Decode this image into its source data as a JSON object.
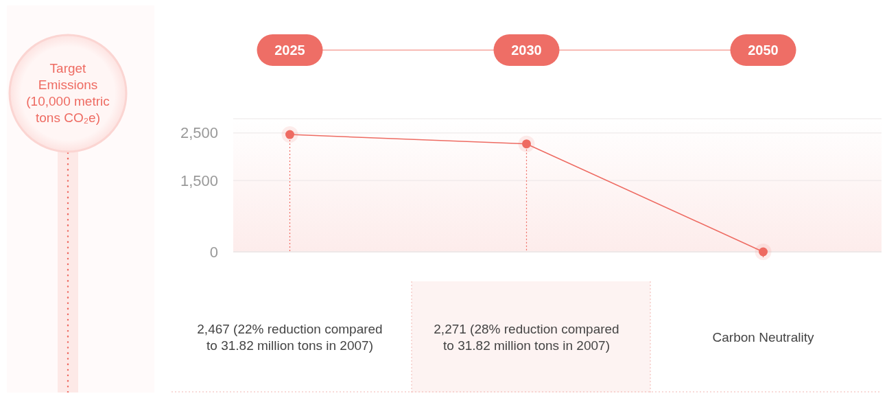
{
  "chart_data": {
    "type": "line",
    "annotations": [
      "Target Emissions (10,000 metric tons CO₂e)",
      "2,467 (22% reduction compared to 31.82 million tons in 2007)",
      "2,271 (28% reduction compared to 31.82 million tons in 2007)",
      "Carbon Neutrality"
    ],
    "categories": [
      "2025",
      "2030",
      "2050"
    ],
    "series": [
      {
        "color": "#ee6b62",
        "values": [
          2467,
          2271,
          0
        ]
      }
    ],
    "ylim": [
      0,
      2800
    ],
    "yticks": [
      {
        "value": 0,
        "label": "0"
      },
      {
        "value": 1500,
        "label": "1,500"
      },
      {
        "value": 2500,
        "label": "2,500"
      }
    ],
    "grid": true,
    "marker": "circle",
    "line_style": "solid"
  }
}
